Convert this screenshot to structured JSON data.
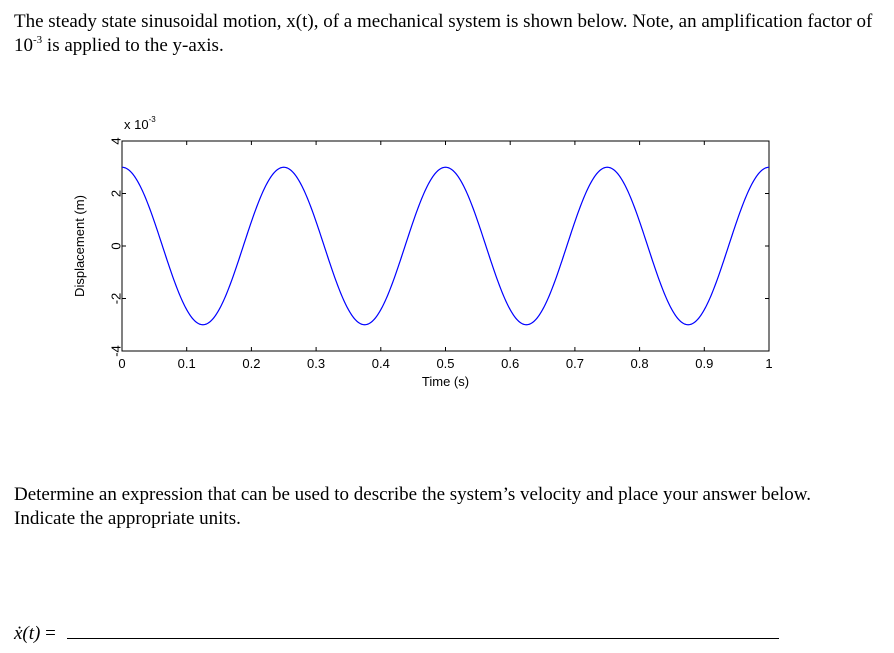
{
  "intro": {
    "text_before_exp": "The steady state sinusoidal motion, x(t), of a mechanical system is shown below. Note, an amplification factor of 10",
    "exp": "-3",
    "text_after_exp": " is applied to the y-axis."
  },
  "question": {
    "text": "Determine an expression that can be used to describe the system’s velocity and place your answer below. Indicate the appropriate units."
  },
  "answer": {
    "lhs": "ẋ(t)",
    "equals": "="
  },
  "chart_data": {
    "type": "line",
    "xlabel": "Time (s)",
    "ylabel": "Displacement (m)",
    "scale_factor_label": "x 10",
    "scale_factor_exp": "-3",
    "xlim": [
      0,
      1
    ],
    "ylim": [
      -4,
      4
    ],
    "x_ticks": [
      0,
      0.1,
      0.2,
      0.3,
      0.4,
      0.5,
      0.6,
      0.7,
      0.8,
      0.9,
      1
    ],
    "x_tick_labels": [
      "0",
      "0.1",
      "0.2",
      "0.3",
      "0.4",
      "0.5",
      "0.6",
      "0.7",
      "0.8",
      "0.9",
      "1"
    ],
    "y_ticks": [
      -4,
      -2,
      0,
      2,
      4
    ],
    "y_tick_labels": [
      "-4",
      "-2",
      "0",
      "2",
      "4"
    ],
    "grid": false,
    "series": [
      {
        "color": "#0000ff",
        "function": "3*cos(8*pi*t)",
        "amplitude": 3,
        "frequency_hz": 4,
        "x": [
          0,
          0.125,
          0.25,
          0.375,
          0.5,
          0.625,
          0.75,
          0.875,
          1
        ],
        "y": [
          3,
          -3,
          3,
          -3,
          3,
          -3,
          3,
          -3,
          3
        ]
      }
    ]
  }
}
